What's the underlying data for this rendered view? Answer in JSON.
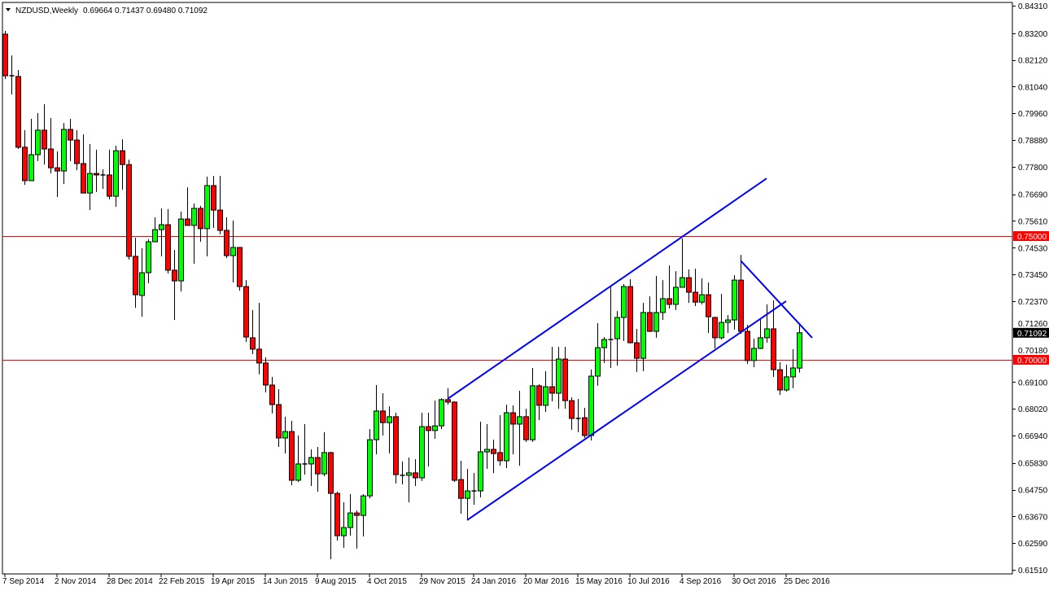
{
  "header": {
    "symbol_label": "NZDUSD,Weekly",
    "ohlc_label": "0.69664 0.71437 0.69480 0.71092"
  },
  "colors": {
    "bull": "#00ff00",
    "bear": "#ff0000",
    "outline": "#000000",
    "level_line": "#ff0000",
    "trendline": "#0000ff",
    "current_price_bg": "#000000"
  },
  "chart_data": {
    "type": "candlestick",
    "title": "NZDUSD,Weekly",
    "ylim": [
      0.6151,
      0.8431
    ],
    "grid": false,
    "y_ticks": [
      "0.84310",
      "0.83200",
      "0.82120",
      "0.81040",
      "0.79960",
      "0.78880",
      "0.77800",
      "0.76690",
      "0.75610",
      "0.74530",
      "0.73450",
      "0.72370",
      "0.71260",
      "0.70180",
      "0.69100",
      "0.68020",
      "0.66940",
      "0.65830",
      "0.64750",
      "0.63670",
      "0.62590",
      "0.61510"
    ],
    "x_ticks": [
      {
        "label": "7 Sep 2014",
        "index": 0
      },
      {
        "label": "2 Nov 2014",
        "index": 8
      },
      {
        "label": "28 Dec 2014",
        "index": 16
      },
      {
        "label": "22 Feb 2015",
        "index": 24
      },
      {
        "label": "19 Apr 2015",
        "index": 32
      },
      {
        "label": "14 Jun 2015",
        "index": 40
      },
      {
        "label": "9 Aug 2015",
        "index": 48
      },
      {
        "label": "4 Oct 2015",
        "index": 56
      },
      {
        "label": "29 Nov 2015",
        "index": 64
      },
      {
        "label": "24 Jan 2016",
        "index": 72
      },
      {
        "label": "20 Mar 2016",
        "index": 80
      },
      {
        "label": "15 May 2016",
        "index": 88
      },
      {
        "label": "10 Jul 2016",
        "index": 96
      },
      {
        "label": "4 Sep 2016",
        "index": 104
      },
      {
        "label": "30 Oct 2016",
        "index": 112
      },
      {
        "label": "25 Dec 2016",
        "index": 120
      }
    ],
    "horizontal_levels": [
      {
        "price": 0.75,
        "label": "0.75000"
      },
      {
        "price": 0.7,
        "label": "0.70000"
      }
    ],
    "current_price": {
      "price": 0.71092,
      "label": "0.71092"
    },
    "trendlines": [
      {
        "from": [
          68,
          0.6842
        ],
        "to": [
          117,
          0.7733
        ]
      },
      {
        "from": [
          71,
          0.6352
        ],
        "to": [
          120,
          0.7237
        ]
      },
      {
        "from": [
          113,
          0.7401
        ],
        "to": [
          124,
          0.7089
        ]
      }
    ],
    "candles_ohlc": [
      [
        0.8316,
        0.8329,
        0.8135,
        0.8148
      ],
      [
        0.8148,
        0.823,
        0.8072,
        0.8148
      ],
      [
        0.8145,
        0.8171,
        0.7852,
        0.7859
      ],
      [
        0.7859,
        0.7928,
        0.7707,
        0.7724
      ],
      [
        0.7724,
        0.7974,
        0.7724,
        0.7829
      ],
      [
        0.7829,
        0.7997,
        0.7803,
        0.7928
      ],
      [
        0.7928,
        0.8033,
        0.7789,
        0.7852
      ],
      [
        0.7852,
        0.7977,
        0.7753,
        0.7776
      ],
      [
        0.7776,
        0.7842,
        0.7658,
        0.7763
      ],
      [
        0.7763,
        0.7957,
        0.771,
        0.7931
      ],
      [
        0.7931,
        0.7974,
        0.7803,
        0.7888
      ],
      [
        0.7888,
        0.7928,
        0.7766,
        0.7793
      ],
      [
        0.7793,
        0.7911,
        0.7674,
        0.7674
      ],
      [
        0.7674,
        0.7872,
        0.7605,
        0.7753
      ],
      [
        0.7753,
        0.7849,
        0.7678,
        0.7747
      ],
      [
        0.7747,
        0.777,
        0.7691,
        0.7746
      ],
      [
        0.7747,
        0.7849,
        0.7648,
        0.7661
      ],
      [
        0.7661,
        0.7865,
        0.7618,
        0.7845
      ],
      [
        0.7845,
        0.7891,
        0.7687,
        0.7789
      ],
      [
        0.7789,
        0.7809,
        0.7405,
        0.7418
      ],
      [
        0.7418,
        0.7493,
        0.721,
        0.7263
      ],
      [
        0.726,
        0.7451,
        0.7174,
        0.7352
      ],
      [
        0.7352,
        0.7487,
        0.7309,
        0.7477
      ],
      [
        0.7477,
        0.7576,
        0.7477,
        0.7526
      ],
      [
        0.7526,
        0.7612,
        0.7418,
        0.7546
      ],
      [
        0.7546,
        0.7609,
        0.7349,
        0.7362
      ],
      [
        0.7362,
        0.7444,
        0.7161,
        0.7319
      ],
      [
        0.7319,
        0.7599,
        0.7276,
        0.7569
      ],
      [
        0.7569,
        0.7697,
        0.7543,
        0.7543
      ],
      [
        0.7543,
        0.7632,
        0.7388,
        0.7612
      ],
      [
        0.7612,
        0.7622,
        0.7477,
        0.753
      ],
      [
        0.753,
        0.774,
        0.7418,
        0.7704
      ],
      [
        0.7704,
        0.7743,
        0.7533,
        0.7605
      ],
      [
        0.7605,
        0.7743,
        0.7507,
        0.7523
      ],
      [
        0.7523,
        0.7576,
        0.7411,
        0.7421
      ],
      [
        0.7421,
        0.7563,
        0.7312,
        0.7454
      ],
      [
        0.7454,
        0.7454,
        0.7279,
        0.7296
      ],
      [
        0.7296,
        0.7322,
        0.7072,
        0.7092
      ],
      [
        0.7089,
        0.7201,
        0.7023,
        0.7043
      ],
      [
        0.7043,
        0.723,
        0.6941,
        0.6987
      ],
      [
        0.6987,
        0.701,
        0.6868,
        0.6898
      ],
      [
        0.6898,
        0.6931,
        0.6783,
        0.6819
      ],
      [
        0.6819,
        0.6881,
        0.6648,
        0.6684
      ],
      [
        0.6684,
        0.677,
        0.6621,
        0.671
      ],
      [
        0.671,
        0.6753,
        0.6493,
        0.6513
      ],
      [
        0.6513,
        0.6694,
        0.6506,
        0.6579
      ],
      [
        0.6579,
        0.674,
        0.6536,
        0.6579
      ],
      [
        0.6579,
        0.6638,
        0.649,
        0.6605
      ],
      [
        0.6605,
        0.6648,
        0.6467,
        0.6539
      ],
      [
        0.6539,
        0.6707,
        0.6529,
        0.6625
      ],
      [
        0.6625,
        0.6628,
        0.6194,
        0.646
      ],
      [
        0.646,
        0.6467,
        0.6269,
        0.6289
      ],
      [
        0.6289,
        0.6424,
        0.624,
        0.6322
      ],
      [
        0.6322,
        0.6457,
        0.6289,
        0.6381
      ],
      [
        0.6381,
        0.6391,
        0.6237,
        0.6371
      ],
      [
        0.6371,
        0.6457,
        0.6286,
        0.645
      ],
      [
        0.645,
        0.672,
        0.644,
        0.6677
      ],
      [
        0.6677,
        0.6898,
        0.6618,
        0.6793
      ],
      [
        0.6793,
        0.6865,
        0.6694,
        0.6746
      ],
      [
        0.6746,
        0.6812,
        0.6621,
        0.677
      ],
      [
        0.677,
        0.6786,
        0.65,
        0.6536
      ],
      [
        0.6533,
        0.6589,
        0.6496,
        0.6533
      ],
      [
        0.6533,
        0.6605,
        0.6424,
        0.6543
      ],
      [
        0.6543,
        0.6598,
        0.649,
        0.6523
      ],
      [
        0.6523,
        0.6786,
        0.651,
        0.673
      ],
      [
        0.673,
        0.6786,
        0.6569,
        0.6714
      ],
      [
        0.6714,
        0.6835,
        0.6681,
        0.6733
      ],
      [
        0.6733,
        0.6845,
        0.672,
        0.6839
      ],
      [
        0.6839,
        0.6885,
        0.6819,
        0.6829
      ],
      [
        0.6829,
        0.6832,
        0.6506,
        0.6513
      ],
      [
        0.6516,
        0.6592,
        0.6378,
        0.644
      ],
      [
        0.644,
        0.6559,
        0.6355,
        0.647
      ],
      [
        0.647,
        0.6542,
        0.6414,
        0.647
      ],
      [
        0.647,
        0.675,
        0.6444,
        0.6628
      ],
      [
        0.6628,
        0.674,
        0.6559,
        0.6638
      ],
      [
        0.6638,
        0.6677,
        0.6542,
        0.6621
      ],
      [
        0.6625,
        0.6776,
        0.6572,
        0.6592
      ],
      [
        0.6592,
        0.6819,
        0.6562,
        0.6786
      ],
      [
        0.6786,
        0.6816,
        0.6618,
        0.674
      ],
      [
        0.674,
        0.6875,
        0.6572,
        0.677
      ],
      [
        0.677,
        0.6802,
        0.6668,
        0.6677
      ],
      [
        0.6677,
        0.6967,
        0.6668,
        0.6895
      ],
      [
        0.6895,
        0.6901,
        0.6756,
        0.6816
      ],
      [
        0.6816,
        0.6954,
        0.6789,
        0.6891
      ],
      [
        0.6891,
        0.7052,
        0.6832,
        0.6865
      ],
      [
        0.6865,
        0.7052,
        0.6802,
        0.7003
      ],
      [
        0.7003,
        0.7052,
        0.6802,
        0.6835
      ],
      [
        0.6835,
        0.6848,
        0.6717,
        0.6763
      ],
      [
        0.6763,
        0.6842,
        0.6707,
        0.6763
      ],
      [
        0.6766,
        0.6806,
        0.6684,
        0.6694
      ],
      [
        0.6694,
        0.6961,
        0.6674,
        0.6934
      ],
      [
        0.6934,
        0.7148,
        0.6895,
        0.7049
      ],
      [
        0.7049,
        0.7092,
        0.6987,
        0.7082
      ],
      [
        0.7082,
        0.7296,
        0.6967,
        0.7085
      ],
      [
        0.7085,
        0.7197,
        0.6977,
        0.7171
      ],
      [
        0.7171,
        0.7306,
        0.7076,
        0.7296
      ],
      [
        0.7296,
        0.7326,
        0.7066,
        0.7069
      ],
      [
        0.7069,
        0.7125,
        0.695,
        0.7006
      ],
      [
        0.7006,
        0.723,
        0.6954,
        0.7191
      ],
      [
        0.7191,
        0.7256,
        0.7112,
        0.7115
      ],
      [
        0.7115,
        0.7339,
        0.7089,
        0.7191
      ],
      [
        0.7191,
        0.7322,
        0.7161,
        0.7247
      ],
      [
        0.7247,
        0.7381,
        0.7207,
        0.7224
      ],
      [
        0.7224,
        0.7358,
        0.7201,
        0.7293
      ],
      [
        0.7293,
        0.749,
        0.7293,
        0.7332
      ],
      [
        0.7332,
        0.7365,
        0.723,
        0.7273
      ],
      [
        0.7273,
        0.7368,
        0.7217,
        0.7233
      ],
      [
        0.7233,
        0.7329,
        0.7224,
        0.7263
      ],
      [
        0.7263,
        0.7312,
        0.7108,
        0.7174
      ],
      [
        0.7171,
        0.7174,
        0.7046,
        0.7089
      ],
      [
        0.7089,
        0.7266,
        0.7082,
        0.7151
      ],
      [
        0.7151,
        0.7181,
        0.7108,
        0.7161
      ],
      [
        0.7161,
        0.7342,
        0.7122,
        0.7322
      ],
      [
        0.7322,
        0.7424,
        0.7105,
        0.7115
      ],
      [
        0.7115,
        0.7141,
        0.6983,
        0.6997
      ],
      [
        0.6997,
        0.7085,
        0.697,
        0.7046
      ],
      [
        0.7046,
        0.7164,
        0.7043,
        0.7089
      ],
      [
        0.7089,
        0.7224,
        0.7069,
        0.7125
      ],
      [
        0.7125,
        0.724,
        0.6931,
        0.696
      ],
      [
        0.696,
        0.699,
        0.6858,
        0.6878
      ],
      [
        0.6878,
        0.698,
        0.6871,
        0.6931
      ],
      [
        0.6931,
        0.7043,
        0.6885,
        0.6967
      ],
      [
        0.69664,
        0.71437,
        0.6948,
        0.71092
      ]
    ]
  }
}
